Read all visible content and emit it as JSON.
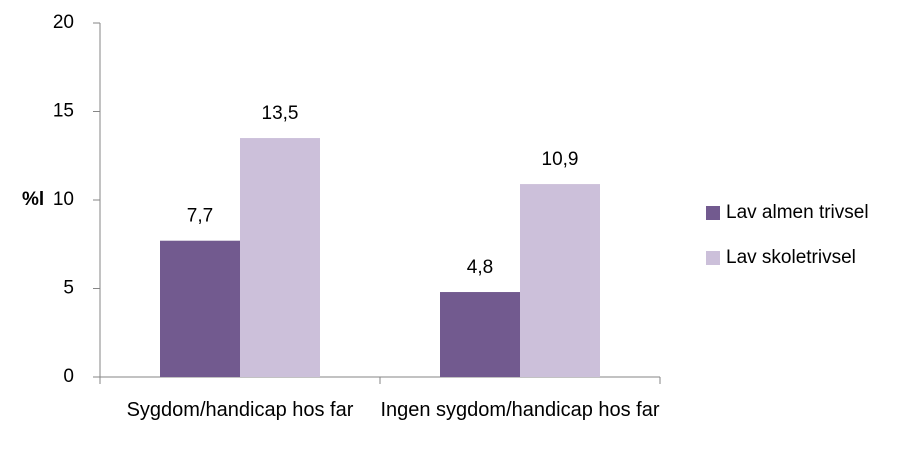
{
  "chart_data": {
    "type": "bar",
    "y_label": "%l",
    "categories": [
      "Sygdom/handicap hos far",
      "Ingen sygdom/handicap hos far"
    ],
    "series": [
      {
        "name": "Lav almen trivsel",
        "color": "#725a8f",
        "values": [
          7.7,
          4.8
        ],
        "value_labels": [
          "7,7",
          "4,8"
        ]
      },
      {
        "name": "Lav skoletrivsel",
        "color": "#ccc0da",
        "values": [
          13.5,
          10.9
        ],
        "value_labels": [
          "13,5",
          "10,9"
        ]
      }
    ],
    "ylim": [
      0,
      20
    ],
    "yticks": [
      0,
      5,
      10,
      15,
      20
    ],
    "legend": "right"
  }
}
